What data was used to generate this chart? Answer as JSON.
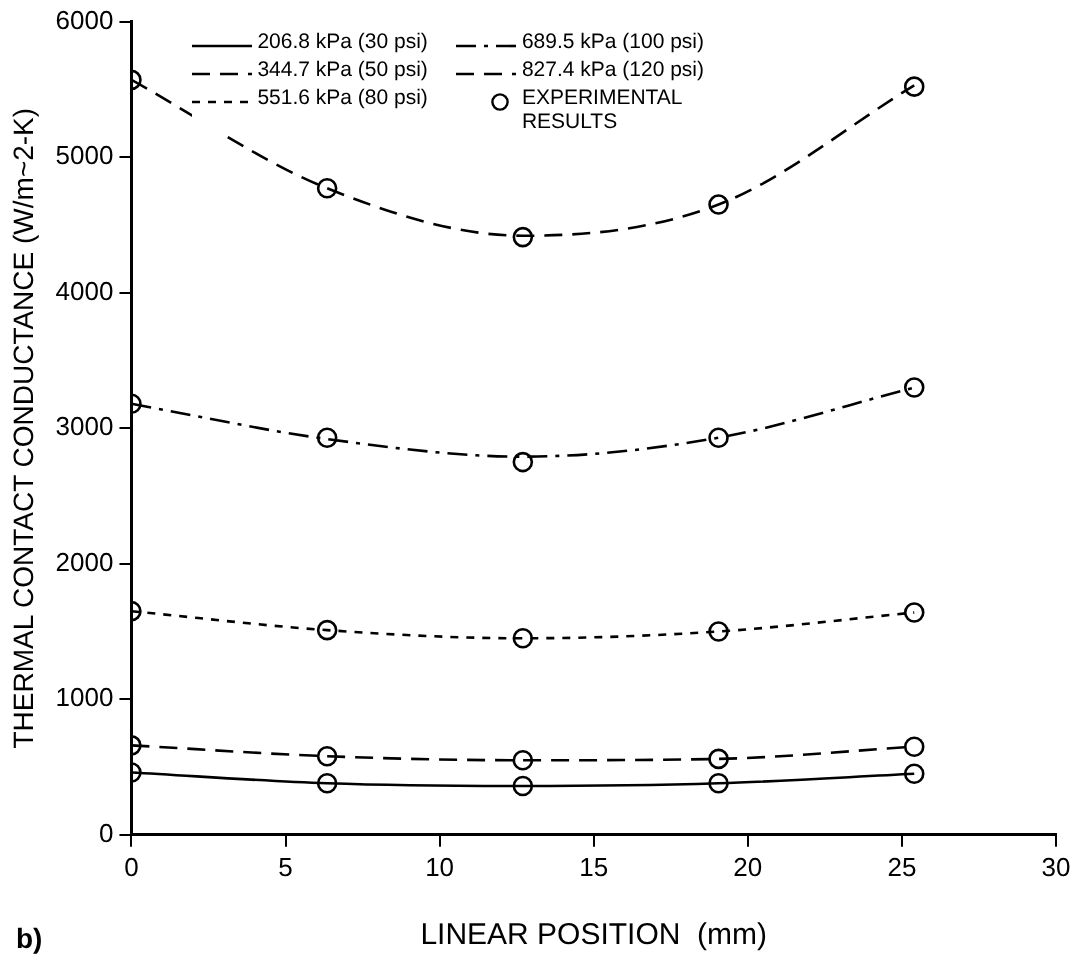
{
  "chart_data": {
    "type": "line",
    "xlabel": "LINEAR POSITION  (mm)",
    "ylabel": "THERMAL CONTACT CONDUCTANCE (W/m~2-K)",
    "x": [
      0,
      6.35,
      12.7,
      19.05,
      25.4
    ],
    "series": [
      {
        "name": "206.8 kPa (30 psi)",
        "color": "#000000",
        "line_style": "solid",
        "marker": "none",
        "values": [
          460,
          380,
          360,
          380,
          450
        ]
      },
      {
        "name": "344.7 kPa (50 psi)",
        "color": "#000000",
        "line_style": "dashed",
        "marker": "none",
        "values": [
          660,
          580,
          550,
          560,
          650
        ]
      },
      {
        "name": "551.6 kPa (80 psi)",
        "color": "#000000",
        "line_style": "dotted",
        "marker": "none",
        "values": [
          1650,
          1510,
          1450,
          1500,
          1640
        ]
      },
      {
        "name": "689.5 kPa (100 psi)",
        "color": "#000000",
        "line_style": "dashdot",
        "marker": "none",
        "values": [
          3180,
          2920,
          2790,
          2930,
          3300
        ]
      },
      {
        "name": "827.4 kPa (120 psi)",
        "color": "#000000",
        "line_style": "dashed",
        "marker": "none",
        "values": [
          5570,
          4770,
          4420,
          4650,
          5530
        ]
      },
      {
        "name": "EXPERIMENTAL RESULTS",
        "type": "scatter",
        "color": "#000000",
        "marker": "circle",
        "x": [
          0,
          6.35,
          12.7,
          19.05,
          25.4,
          0,
          6.35,
          12.7,
          19.05,
          25.4,
          0,
          6.35,
          12.7,
          19.05,
          25.4,
          0,
          6.35,
          12.7,
          19.05,
          25.4,
          0,
          6.35,
          12.7,
          19.05,
          25.4
        ],
        "values": [
          460,
          380,
          360,
          380,
          450,
          660,
          580,
          550,
          560,
          650,
          1650,
          1510,
          1450,
          1500,
          1640,
          3180,
          2930,
          2750,
          2930,
          3300,
          5570,
          4770,
          4410,
          4650,
          5520
        ]
      }
    ],
    "xlim": [
      0,
      30
    ],
    "xticks": [
      0,
      5,
      10,
      15,
      20,
      25,
      30
    ],
    "ylim": [
      0,
      6000
    ],
    "yticks": [
      0,
      1000,
      2000,
      3000,
      4000,
      5000,
      6000
    ],
    "grid": false,
    "legend": "top",
    "annotations": [
      "b)"
    ]
  }
}
